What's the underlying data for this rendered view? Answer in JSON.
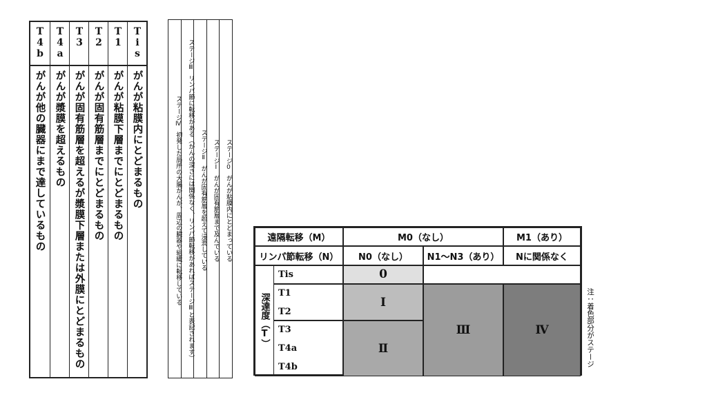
{
  "t_table": {
    "rows": [
      {
        "code": "Tis",
        "desc": "がんが粘膜内にとどまるもの"
      },
      {
        "code": "T1",
        "desc": "がんが粘膜下層までにとどまるもの"
      },
      {
        "code": "T2",
        "desc": "がんが固有筋層までにとどまるもの"
      },
      {
        "code": "T3",
        "desc": "がんが固有筋層を超えるが漿膜下層または外膜にとどまるもの"
      },
      {
        "code": "T4a",
        "desc": "がんが漿膜を超えるもの"
      },
      {
        "code": "T4b",
        "desc": "がんが他の臓器にまで達しているもの"
      }
    ]
  },
  "stage_table": {
    "rows": [
      {
        "stage": "ステージ0",
        "desc": "がんが粘膜内にとどまっている"
      },
      {
        "stage": "ステージⅠ",
        "desc": "がんが固有筋層まで及んでいる"
      },
      {
        "stage": "ステージⅡ",
        "desc": "がんが固有筋層を超えて浸潤している"
      },
      {
        "stage": "ステージⅢ",
        "desc": "リンパ節に転移がある（がんの深さには関係なく、リンパ節転移があればステージⅢと表記されます）"
      },
      {
        "stage": "ステージⅣ",
        "desc": "初発した局所の大腸がんが、周辺の臓器や組織に転移している"
      }
    ]
  },
  "staging_table": {
    "m_header": "遠隔転移（M）",
    "m0": "M0（なし）",
    "m1": "M1（あり）",
    "n_header": "リンパ節転移（N）",
    "n0": "N0（なし）",
    "n1_n3": "N1〜N3（あり）",
    "n_any": "Nに関係なく",
    "depth_label": "深達度（T）",
    "t_rows": [
      "Tis",
      "T1",
      "T2",
      "T3",
      "T4a",
      "T4b"
    ],
    "stages": [
      "0",
      "Ⅰ",
      "Ⅱ",
      "Ⅲ",
      "Ⅳ"
    ],
    "note": "注：着色部分がステージ"
  }
}
